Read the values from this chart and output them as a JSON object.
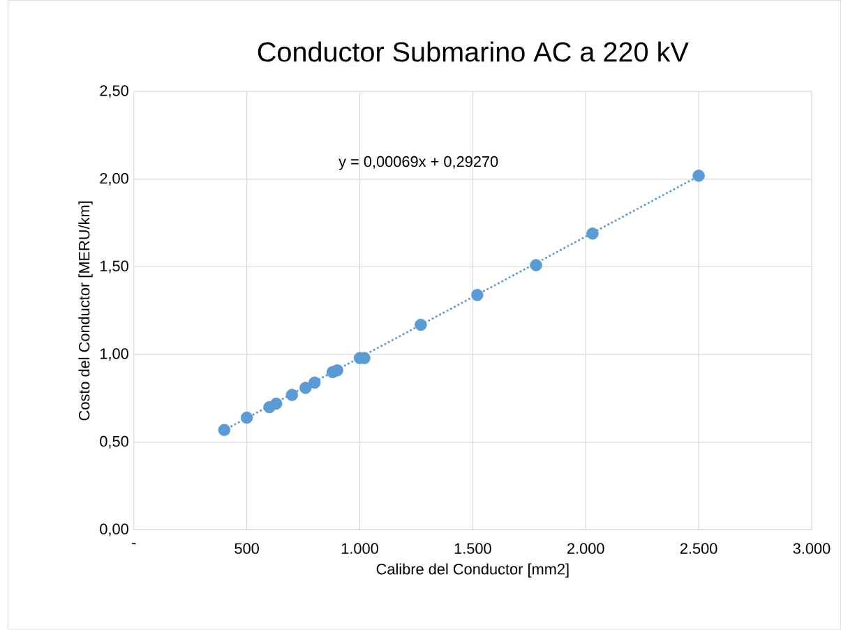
{
  "chart_data": {
    "type": "scatter",
    "title": "Conductor Submarino AC a 220 kV",
    "xlabel": "Calibre del Conductor [mm2]",
    "ylabel": "Costo del Conductor [MERU/km]",
    "annotations": [
      "y = 0,00069x + 0,29270"
    ],
    "series": [
      {
        "color": "#5b9bd5",
        "marker": "circle",
        "x": [
          400,
          500,
          600,
          630,
          700,
          760,
          800,
          880,
          900,
          1000,
          1020,
          1270,
          1520,
          1780,
          2030,
          2500
        ],
        "values": [
          0.57,
          0.64,
          0.7,
          0.72,
          0.77,
          0.81,
          0.84,
          0.9,
          0.91,
          0.98,
          0.98,
          1.17,
          1.34,
          1.51,
          1.69,
          2.02
        ]
      },
      {
        "type": "line",
        "color": "#5b9bd5",
        "line_style": "dotted",
        "marker": "none",
        "x": [
          400,
          2500
        ],
        "values": [
          0.569,
          2.018
        ]
      }
    ],
    "xlim": [
      0,
      3000
    ],
    "ylim": [
      0,
      2.5
    ],
    "xticks": [
      {
        "value": 0,
        "label": "-"
      },
      500,
      {
        "value": 1000,
        "label": "1.000"
      },
      {
        "value": 1500,
        "label": "1.500"
      },
      {
        "value": 2000,
        "label": "2.000"
      },
      {
        "value": 2500,
        "label": "2.500"
      },
      {
        "value": 3000,
        "label": "3.000"
      }
    ],
    "yticks": [
      {
        "value": 0,
        "label": "0,00"
      },
      {
        "value": 0.5,
        "label": "0,50"
      },
      {
        "value": 1,
        "label": "1,00"
      },
      {
        "value": 1.5,
        "label": "1,50"
      },
      {
        "value": 2,
        "label": "2,00"
      },
      {
        "value": 2.5,
        "label": "2,50"
      }
    ],
    "grid": true
  }
}
